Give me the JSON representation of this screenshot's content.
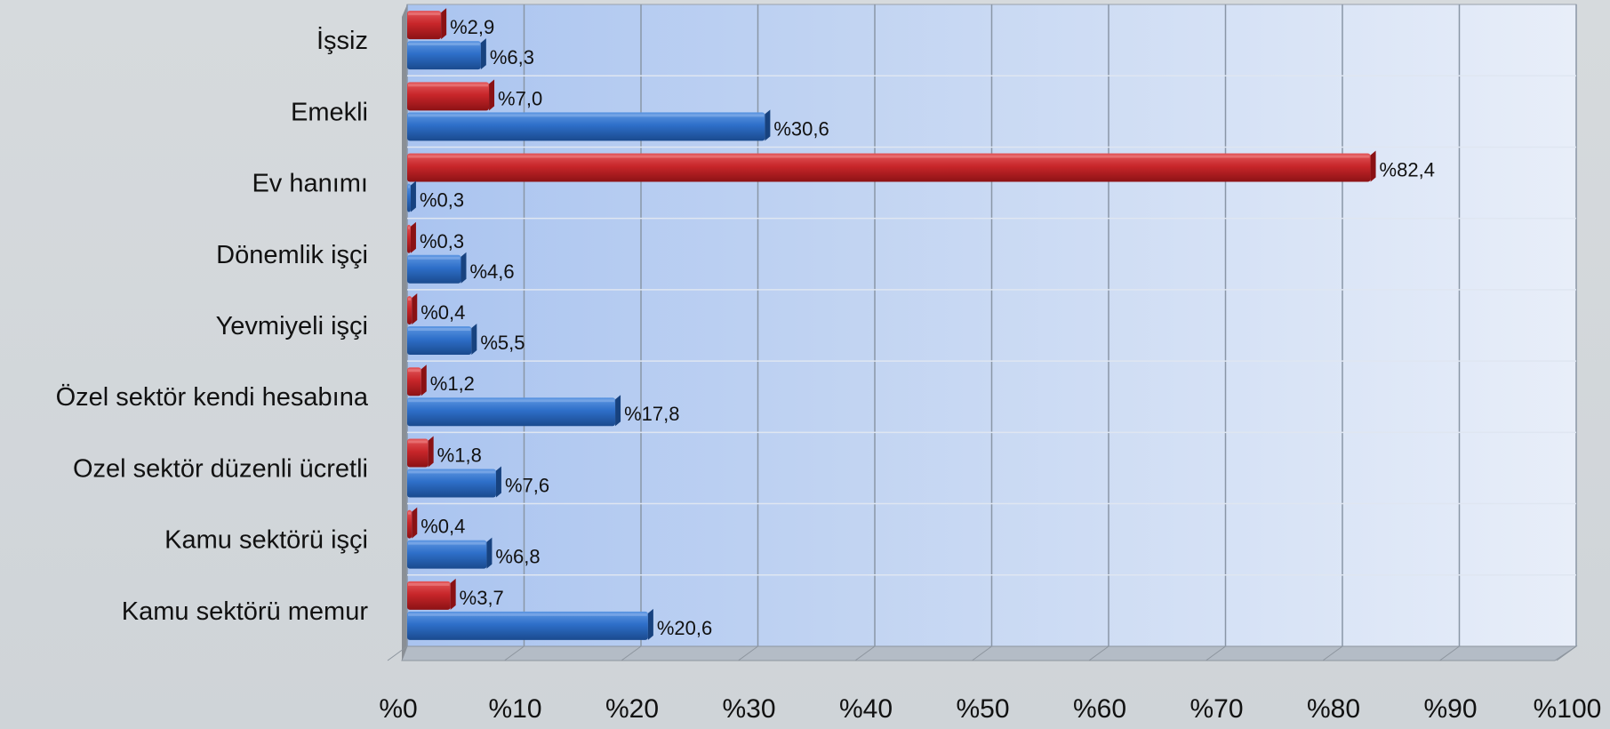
{
  "chart_data": {
    "type": "bar",
    "orientation": "horizontal",
    "three_d": true,
    "categories": [
      "İşsiz",
      "Emekli",
      "Ev hanımı",
      "Dönemlik işçi",
      "Yevmiyeli işçi",
      "Özel sektör kendi hesabına",
      "Ozel sektör düzenli ücretli",
      "Kamu sektörü işçi",
      "Kamu sektörü memur"
    ],
    "series": [
      {
        "color": "#c8262a",
        "values": [
          2.9,
          7.0,
          82.4,
          0.3,
          0.4,
          1.2,
          1.8,
          0.4,
          3.7
        ],
        "labels": [
          "%2,9",
          "%7,0",
          "%82,4",
          "%0,3",
          "%0,4",
          "%1,2",
          "%1,8",
          "%0,4",
          "%3,7"
        ]
      },
      {
        "color": "#2e6fc9",
        "values": [
          6.3,
          30.6,
          0.3,
          4.6,
          5.5,
          17.8,
          7.6,
          6.8,
          20.6
        ],
        "labels": [
          "%6,3",
          "%30,6",
          "%0,3",
          "%4,6",
          "%5,5",
          "%17,8",
          "%7,6",
          "%6,8",
          "%20,6"
        ]
      }
    ],
    "x_ticks": [
      "%0",
      "%10",
      "%20",
      "%30",
      "%40",
      "%50",
      "%60",
      "%70",
      "%80",
      "%90",
      "%100"
    ],
    "xlim": [
      0,
      100
    ],
    "grid": true,
    "legend": "none",
    "title": "",
    "xlabel": "",
    "ylabel": ""
  }
}
